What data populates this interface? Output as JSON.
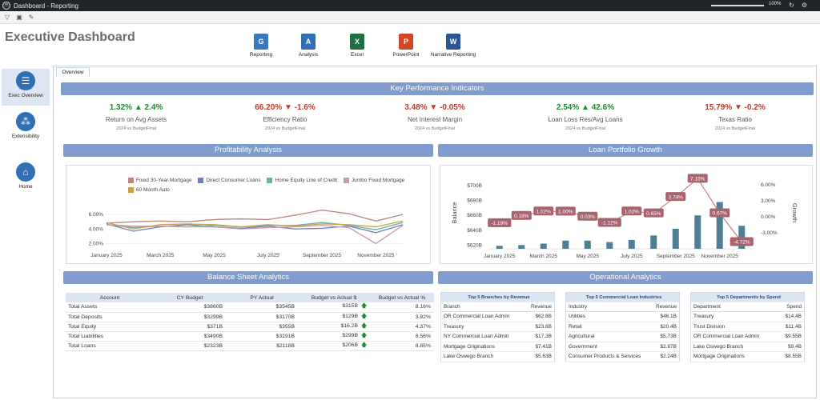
{
  "window": {
    "title": "Dashboard - Reporting",
    "zoom": "100%"
  },
  "page_title": "Executive Dashboard",
  "ribbon": [
    {
      "label": "Reporting",
      "icon": "reporting-icon",
      "color": "#3a78c2",
      "glyph": "G"
    },
    {
      "label": "Analysis",
      "icon": "analysis-icon",
      "color": "#2f6fb3",
      "glyph": "A"
    },
    {
      "label": "Excel",
      "icon": "excel-icon",
      "color": "#1e7145",
      "glyph": "X"
    },
    {
      "label": "PowerPoint",
      "icon": "powerpoint-icon",
      "color": "#d24726",
      "glyph": "P"
    },
    {
      "label": "Narrative Reporting",
      "icon": "word-icon",
      "color": "#2b579a",
      "glyph": "W"
    }
  ],
  "sidebar": [
    {
      "label": "Exec Overview",
      "icon": "clipboard-icon"
    },
    {
      "label": "Extensibility",
      "icon": "network-icon"
    },
    {
      "label": "Home",
      "icon": "home-icon"
    }
  ],
  "tab": "Overview",
  "sections": {
    "kpi": "Key Performance Indicators",
    "profitability": "Profitability Analysis",
    "loan_growth": "Loan Portfolio Growth",
    "balance_sheet": "Balance Sheet Analytics",
    "operational": "Operational Analytics"
  },
  "kpis": [
    {
      "value": "1.32%",
      "arrow": "▲",
      "change": "2.4%",
      "trend": "up",
      "label": "Return on Avg Assets",
      "sub": "2024 vs BudgetFinal"
    },
    {
      "value": "66.20%",
      "arrow": "▼",
      "change": "-1.6%",
      "trend": "down",
      "label": "Efficiency Ratio",
      "sub": "2024 vs BudgetFinal"
    },
    {
      "value": "3.48%",
      "arrow": "▼",
      "change": "-0.05%",
      "trend": "down",
      "label": "Net Interest Margin",
      "sub": "2024 vs BudgetFinal"
    },
    {
      "value": "2.54%",
      "arrow": "▲",
      "change": "42.6%",
      "trend": "up",
      "label": "Loan Loss Res/Avg Loans",
      "sub": "2024 vs BudgetFinal"
    },
    {
      "value": "15.79%",
      "arrow": "▼",
      "change": "-0.2%",
      "trend": "down",
      "label": "Texas Ratio",
      "sub": "2024 vs BudgetFinal"
    }
  ],
  "colors": {
    "up": "#1e8a2e",
    "down": "#c0392b",
    "section_bar": "#7f9ccc",
    "bar": "#4f7f95",
    "growth_line": "#c98089"
  },
  "chart_data": [
    {
      "type": "line",
      "title": "Profitability Analysis",
      "x": [
        "January 2025",
        "February 2025",
        "March 2025",
        "April 2025",
        "May 2025",
        "June 2025",
        "July 2025",
        "August 2025",
        "September 2025",
        "October 2025",
        "November 2025",
        "December 2025"
      ],
      "x_tick_labels": [
        "January 2025",
        "March 2025",
        "May 2025",
        "July 2025",
        "September 2025",
        "November 2025"
      ],
      "y_ticks": [
        "2.00%",
        "4.00%",
        "6.00%"
      ],
      "ylim": [
        1.5,
        7.0
      ],
      "legend_position": "top",
      "series": [
        {
          "name": "Fixed 30-Year Mortgage",
          "color": "#b5887a",
          "values": [
            4.8,
            5.0,
            5.1,
            5.0,
            5.3,
            5.4,
            5.3,
            5.9,
            6.6,
            6.1,
            5.1,
            6.0
          ]
        },
        {
          "name": "Direct Consumer Loans",
          "color": "#6f7fb8",
          "values": [
            4.7,
            3.7,
            4.3,
            4.6,
            4.3,
            4.1,
            4.4,
            4.0,
            4.1,
            4.4,
            3.5,
            4.6
          ]
        },
        {
          "name": "Home Equity Line of Credit",
          "color": "#6bb0a6",
          "values": [
            4.6,
            4.2,
            4.4,
            4.3,
            4.5,
            4.3,
            4.5,
            4.5,
            4.9,
            4.5,
            3.9,
            4.9
          ]
        },
        {
          "name": "Jumbo Fixed Mortgage",
          "color": "#c79bb0",
          "values": [
            4.6,
            4.4,
            4.4,
            4.3,
            4.3,
            4.0,
            4.2,
            4.3,
            4.5,
            4.2,
            2.0,
            4.5
          ]
        },
        {
          "name": "60 Month Auto",
          "color": "#c9a24e",
          "values": [
            4.9,
            4.0,
            4.6,
            4.7,
            4.6,
            4.3,
            4.6,
            4.4,
            4.7,
            4.6,
            4.3,
            5.1
          ]
        }
      ]
    },
    {
      "type": "bar",
      "title": "Loan Portfolio Growth",
      "ylabel": "Balance",
      "y2label": "Growth",
      "categories": [
        "January 2025",
        "February 2025",
        "March 2025",
        "April 2025",
        "May 2025",
        "June 2025",
        "July 2025",
        "August 2025",
        "September 2025",
        "October 2025",
        "November 2025",
        "December 2025"
      ],
      "x_tick_labels": [
        "January 2025",
        "March 2025",
        "May 2025",
        "July 2025",
        "September 2025",
        "November 2025"
      ],
      "y_ticks": [
        "$620B",
        "$640B",
        "$660B",
        "$680B",
        "$700B"
      ],
      "ylim": [
        615,
        712
      ],
      "y2_ticks": [
        "-3.00%",
        "0.00%",
        "3.00%",
        "6.00%"
      ],
      "y2lim": [
        -6.0,
        7.5
      ],
      "series": [
        {
          "name": "Balance",
          "values": [
            619,
            620,
            622,
            626,
            626,
            624,
            627,
            633,
            642,
            660,
            678,
            646
          ]
        },
        {
          "name": "Growth",
          "values": [
            -1.19,
            0.18,
            1.02,
            1.0,
            0.03,
            -1.12,
            1.02,
            0.65,
            3.74,
            7.15,
            0.67,
            -4.72
          ]
        }
      ],
      "growth_labels": [
        "-1.19%",
        "0.18%",
        "1.02%",
        "1.00%",
        "0.03%",
        "-1.12%",
        "1.02%",
        "0.65%",
        "3.74%",
        "7.15%",
        "0.67%",
        "-4.72%"
      ]
    }
  ],
  "balance_sheet": {
    "headers": [
      "Account",
      "CY Budget",
      "PY Actual",
      "Budget vs Actual $",
      "Budget vs Actual %"
    ],
    "rows": [
      {
        "account": "Total Assets",
        "cy": "$3860B",
        "py": "$3545B",
        "diff": "$315B",
        "pct": "8.16%"
      },
      {
        "account": "Total Deposits",
        "cy": "$3299B",
        "py": "$3170B",
        "diff": "$129B",
        "pct": "3.92%"
      },
      {
        "account": "Total Equity",
        "cy": "$371B",
        "py": "$355B",
        "diff": "$16.2B",
        "pct": "4.37%"
      },
      {
        "account": "Total Liabilities",
        "cy": "$3490B",
        "py": "$3191B",
        "diff": "$299B",
        "pct": "8.56%"
      },
      {
        "account": "Total Loans",
        "cy": "$2323B",
        "py": "$2118B",
        "diff": "$206B",
        "pct": "8.85%"
      }
    ]
  },
  "ops": [
    {
      "caption": "Top 5 Branches by Revenue",
      "headers": [
        "Branch",
        "Revenue"
      ],
      "rows": [
        [
          "OR Commercial Loan Admin",
          "$62.8B"
        ],
        [
          "Treasury",
          "$23.6B"
        ],
        [
          "NY Commercial Loan Admin",
          "$17.3B"
        ],
        [
          "Mortgage Originations",
          "$7.41B"
        ],
        [
          "Lake Oswego Branch",
          "$5.63B"
        ]
      ]
    },
    {
      "caption": "Top 5 Commercial Loan Industries",
      "headers": [
        "Industry",
        "Revenue"
      ],
      "rows": [
        [
          "Utilities",
          "$46.1B"
        ],
        [
          "Retail",
          "$20.4B"
        ],
        [
          "Agricultural",
          "$5.73B"
        ],
        [
          "Government",
          "$2.87B"
        ],
        [
          "Consumer Products & Services",
          "$2.24B"
        ]
      ]
    },
    {
      "caption": "Top 5 Departments by Spend",
      "headers": [
        "Department",
        "Spend"
      ],
      "rows": [
        [
          "Treasury",
          "$14.4B"
        ],
        [
          "Trust Division",
          "$11.4B"
        ],
        [
          "OR Commercial Loan Admin",
          "$9.55B"
        ],
        [
          "Lake Oswego Branch",
          "$9.4B"
        ],
        [
          "Mortgage Originations",
          "$8.55B"
        ]
      ]
    }
  ]
}
